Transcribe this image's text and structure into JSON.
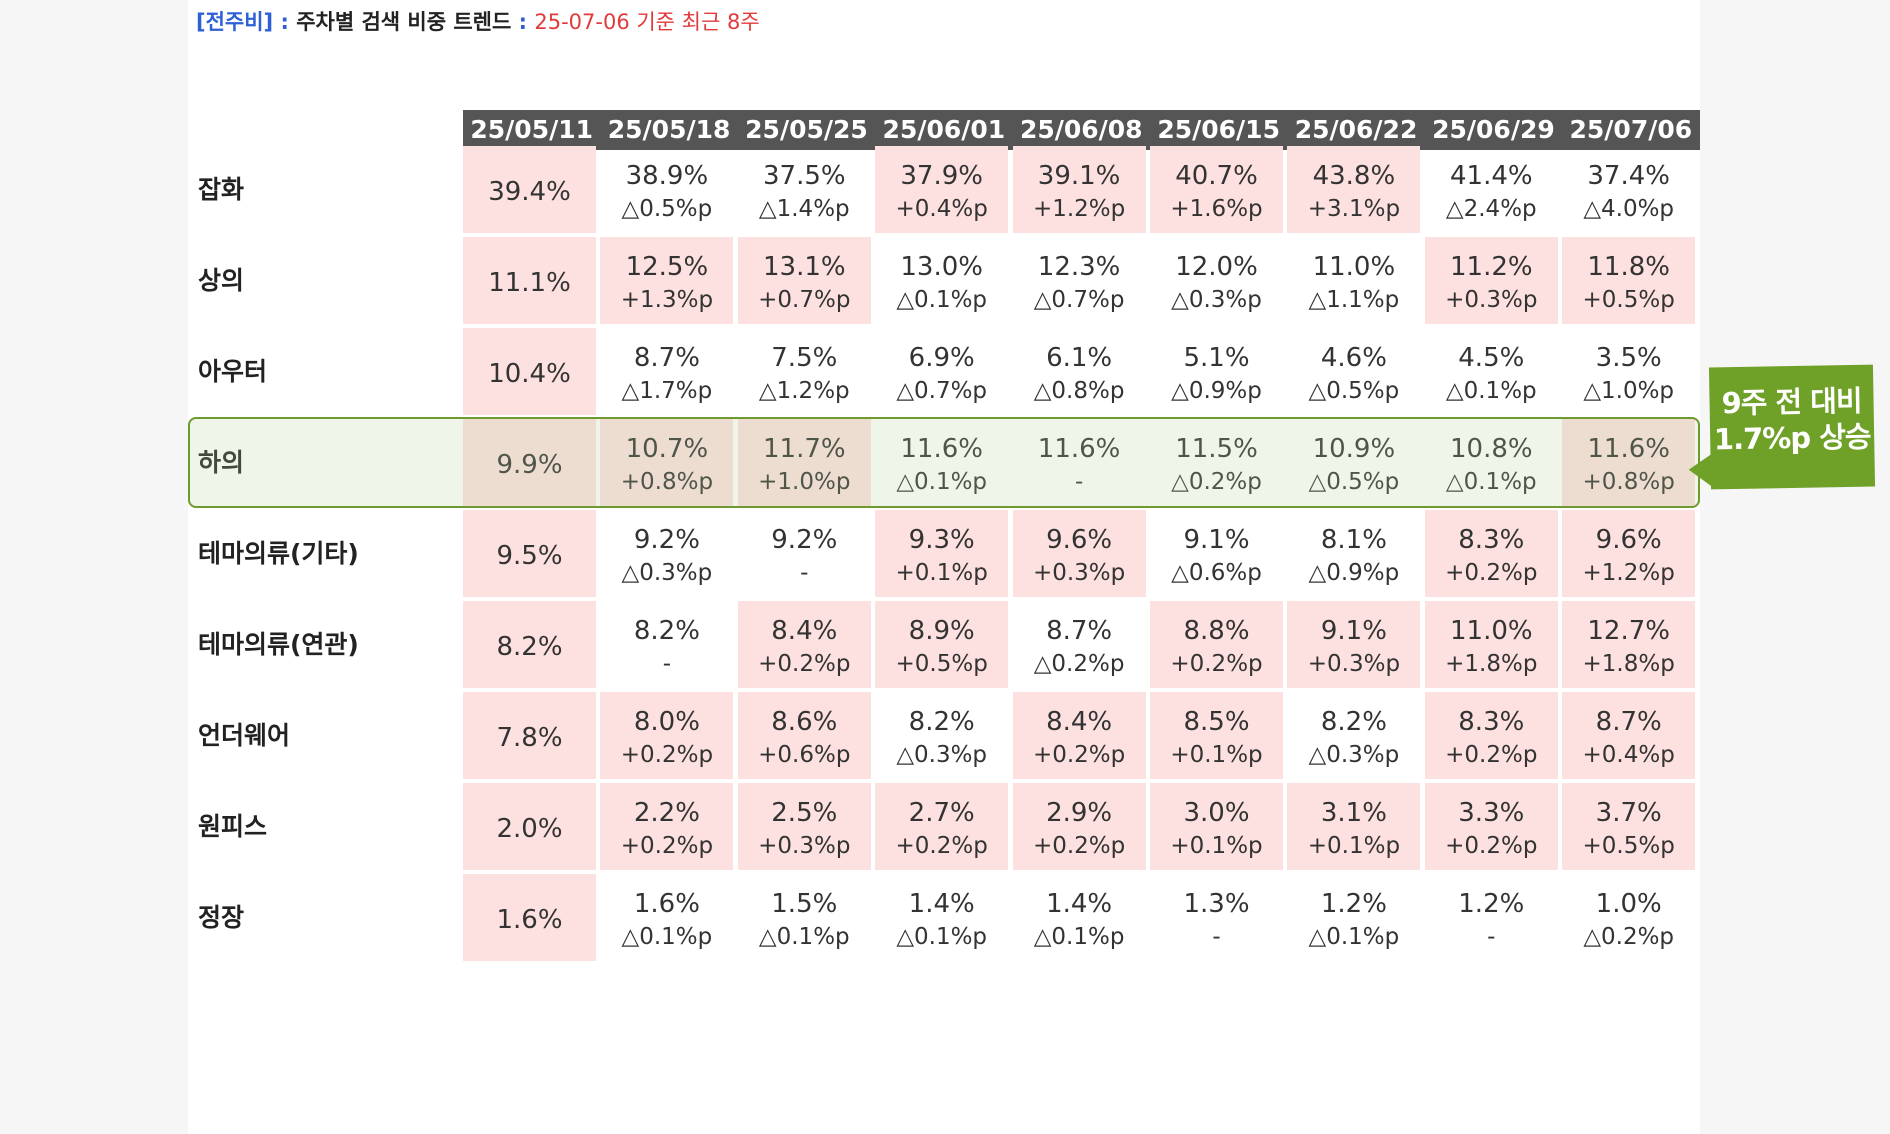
{
  "heading": {
    "tag": "[전주비]",
    "sep": " : ",
    "title": "주차별 검색 비중 트렌드",
    "sep2": " : ",
    "range": "25-07-06 기준 최근 8주"
  },
  "columns": [
    "25/05/11",
    "25/05/18",
    "25/05/25",
    "25/06/01",
    "25/06/08",
    "25/06/15",
    "25/06/22",
    "25/06/29",
    "25/07/06"
  ],
  "rows": [
    {
      "label": "잡화",
      "cells": [
        {
          "pct": "39.4%",
          "chg": "",
          "pink": true
        },
        {
          "pct": "38.9%",
          "chg": "△0.5%p",
          "pink": false
        },
        {
          "pct": "37.5%",
          "chg": "△1.4%p",
          "pink": false
        },
        {
          "pct": "37.9%",
          "chg": "+0.4%p",
          "pink": true
        },
        {
          "pct": "39.1%",
          "chg": "+1.2%p",
          "pink": true
        },
        {
          "pct": "40.7%",
          "chg": "+1.6%p",
          "pink": true
        },
        {
          "pct": "43.8%",
          "chg": "+3.1%p",
          "pink": true
        },
        {
          "pct": "41.4%",
          "chg": "△2.4%p",
          "pink": false
        },
        {
          "pct": "37.4%",
          "chg": "△4.0%p",
          "pink": false
        }
      ]
    },
    {
      "label": "상의",
      "cells": [
        {
          "pct": "11.1%",
          "chg": "",
          "pink": true
        },
        {
          "pct": "12.5%",
          "chg": "+1.3%p",
          "pink": true
        },
        {
          "pct": "13.1%",
          "chg": "+0.7%p",
          "pink": true
        },
        {
          "pct": "13.0%",
          "chg": "△0.1%p",
          "pink": false
        },
        {
          "pct": "12.3%",
          "chg": "△0.7%p",
          "pink": false
        },
        {
          "pct": "12.0%",
          "chg": "△0.3%p",
          "pink": false
        },
        {
          "pct": "11.0%",
          "chg": "△1.1%p",
          "pink": false
        },
        {
          "pct": "11.2%",
          "chg": "+0.3%p",
          "pink": true
        },
        {
          "pct": "11.8%",
          "chg": "+0.5%p",
          "pink": true
        }
      ]
    },
    {
      "label": "아우터",
      "cells": [
        {
          "pct": "10.4%",
          "chg": "",
          "pink": true
        },
        {
          "pct": "8.7%",
          "chg": "△1.7%p",
          "pink": false
        },
        {
          "pct": "7.5%",
          "chg": "△1.2%p",
          "pink": false
        },
        {
          "pct": "6.9%",
          "chg": "△0.7%p",
          "pink": false
        },
        {
          "pct": "6.1%",
          "chg": "△0.8%p",
          "pink": false
        },
        {
          "pct": "5.1%",
          "chg": "△0.9%p",
          "pink": false
        },
        {
          "pct": "4.6%",
          "chg": "△0.5%p",
          "pink": false
        },
        {
          "pct": "4.5%",
          "chg": "△0.1%p",
          "pink": false
        },
        {
          "pct": "3.5%",
          "chg": "△1.0%p",
          "pink": false
        }
      ]
    },
    {
      "label": "하의",
      "cells": [
        {
          "pct": "9.9%",
          "chg": "",
          "pink": true
        },
        {
          "pct": "10.7%",
          "chg": "+0.8%p",
          "pink": true
        },
        {
          "pct": "11.7%",
          "chg": "+1.0%p",
          "pink": true
        },
        {
          "pct": "11.6%",
          "chg": "△0.1%p",
          "pink": false
        },
        {
          "pct": "11.6%",
          "chg": "-",
          "pink": false
        },
        {
          "pct": "11.5%",
          "chg": "△0.2%p",
          "pink": false
        },
        {
          "pct": "10.9%",
          "chg": "△0.5%p",
          "pink": false
        },
        {
          "pct": "10.8%",
          "chg": "△0.1%p",
          "pink": false
        },
        {
          "pct": "11.6%",
          "chg": "+0.8%p",
          "pink": true
        }
      ]
    },
    {
      "label": "테마의류(기타)",
      "cells": [
        {
          "pct": "9.5%",
          "chg": "",
          "pink": true
        },
        {
          "pct": "9.2%",
          "chg": "△0.3%p",
          "pink": false
        },
        {
          "pct": "9.2%",
          "chg": "-",
          "pink": false
        },
        {
          "pct": "9.3%",
          "chg": "+0.1%p",
          "pink": true
        },
        {
          "pct": "9.6%",
          "chg": "+0.3%p",
          "pink": true
        },
        {
          "pct": "9.1%",
          "chg": "△0.6%p",
          "pink": false
        },
        {
          "pct": "8.1%",
          "chg": "△0.9%p",
          "pink": false
        },
        {
          "pct": "8.3%",
          "chg": "+0.2%p",
          "pink": true
        },
        {
          "pct": "9.6%",
          "chg": "+1.2%p",
          "pink": true
        }
      ]
    },
    {
      "label": "테마의류(연관)",
      "cells": [
        {
          "pct": "8.2%",
          "chg": "",
          "pink": true
        },
        {
          "pct": "8.2%",
          "chg": "-",
          "pink": false
        },
        {
          "pct": "8.4%",
          "chg": "+0.2%p",
          "pink": true
        },
        {
          "pct": "8.9%",
          "chg": "+0.5%p",
          "pink": true
        },
        {
          "pct": "8.7%",
          "chg": "△0.2%p",
          "pink": false
        },
        {
          "pct": "8.8%",
          "chg": "+0.2%p",
          "pink": true
        },
        {
          "pct": "9.1%",
          "chg": "+0.3%p",
          "pink": true
        },
        {
          "pct": "11.0%",
          "chg": "+1.8%p",
          "pink": true
        },
        {
          "pct": "12.7%",
          "chg": "+1.8%p",
          "pink": true
        }
      ]
    },
    {
      "label": "언더웨어",
      "cells": [
        {
          "pct": "7.8%",
          "chg": "",
          "pink": true
        },
        {
          "pct": "8.0%",
          "chg": "+0.2%p",
          "pink": true
        },
        {
          "pct": "8.6%",
          "chg": "+0.6%p",
          "pink": true
        },
        {
          "pct": "8.2%",
          "chg": "△0.3%p",
          "pink": false
        },
        {
          "pct": "8.4%",
          "chg": "+0.2%p",
          "pink": true
        },
        {
          "pct": "8.5%",
          "chg": "+0.1%p",
          "pink": true
        },
        {
          "pct": "8.2%",
          "chg": "△0.3%p",
          "pink": false
        },
        {
          "pct": "8.3%",
          "chg": "+0.2%p",
          "pink": true
        },
        {
          "pct": "8.7%",
          "chg": "+0.4%p",
          "pink": true
        }
      ]
    },
    {
      "label": "원피스",
      "cells": [
        {
          "pct": "2.0%",
          "chg": "",
          "pink": true
        },
        {
          "pct": "2.2%",
          "chg": "+0.2%p",
          "pink": true
        },
        {
          "pct": "2.5%",
          "chg": "+0.3%p",
          "pink": true
        },
        {
          "pct": "2.7%",
          "chg": "+0.2%p",
          "pink": true
        },
        {
          "pct": "2.9%",
          "chg": "+0.2%p",
          "pink": true
        },
        {
          "pct": "3.0%",
          "chg": "+0.1%p",
          "pink": true
        },
        {
          "pct": "3.1%",
          "chg": "+0.1%p",
          "pink": true
        },
        {
          "pct": "3.3%",
          "chg": "+0.2%p",
          "pink": true
        },
        {
          "pct": "3.7%",
          "chg": "+0.5%p",
          "pink": true
        }
      ]
    },
    {
      "label": "정장",
      "cells": [
        {
          "pct": "1.6%",
          "chg": "",
          "pink": true
        },
        {
          "pct": "1.6%",
          "chg": "△0.1%p",
          "pink": false
        },
        {
          "pct": "1.5%",
          "chg": "△0.1%p",
          "pink": false
        },
        {
          "pct": "1.4%",
          "chg": "△0.1%p",
          "pink": false
        },
        {
          "pct": "1.4%",
          "chg": "△0.1%p",
          "pink": false
        },
        {
          "pct": "1.3%",
          "chg": "-",
          "pink": false
        },
        {
          "pct": "1.2%",
          "chg": "△0.1%p",
          "pink": false
        },
        {
          "pct": "1.2%",
          "chg": "-",
          "pink": false
        },
        {
          "pct": "1.0%",
          "chg": "△0.2%p",
          "pink": false
        }
      ]
    }
  ],
  "highlight_row": "하의",
  "callout": {
    "line1": "9주 전 대비",
    "line2": "1.7%p 상승"
  },
  "colors": {
    "header": "#555555",
    "pink": "#fde0e0",
    "accent_green": "#6fa128",
    "tag_blue": "#2d5fd6",
    "range_red": "#e23a3a"
  }
}
